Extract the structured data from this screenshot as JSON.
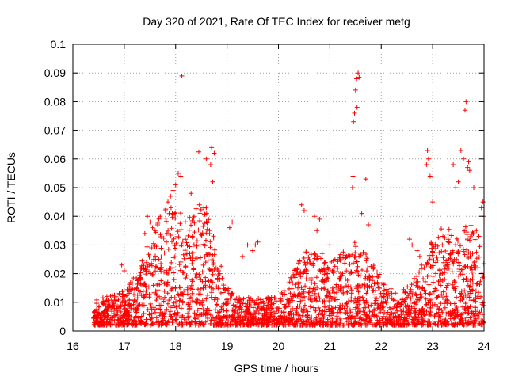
{
  "chart_data": {
    "type": "scatter",
    "title": "Day 320 of 2021, Rate Of TEC Index for receiver metg",
    "xlabel": "GPS time / hours",
    "ylabel": "ROTI / TECUs",
    "xlim": [
      16,
      24
    ],
    "ylim": [
      0,
      0.1
    ],
    "x_ticks": [
      "16",
      "17",
      "18",
      "19",
      "20",
      "21",
      "22",
      "23",
      "24"
    ],
    "y_ticks": [
      "0",
      "0.01",
      "0.02",
      "0.03",
      "0.04",
      "0.05",
      "0.06",
      "0.07",
      "0.08",
      "0.09",
      "0.1"
    ],
    "grid": true,
    "marker": "plus",
    "color": "#ff0000",
    "series": [
      {
        "x": [
          18.12,
          21.55,
          21.52,
          21.57,
          21.5,
          21.48,
          21.46,
          21.53,
          23.65,
          23.63,
          18.45,
          18.7,
          18.75,
          18.6,
          18.68,
          18.05,
          18.1,
          18.0,
          17.95,
          17.9,
          17.85,
          18.3,
          18.55,
          18.72,
          22.9,
          22.92,
          22.88,
          22.95,
          23.0,
          23.55,
          23.6,
          23.68,
          23.7,
          23.72,
          23.4,
          23.5,
          23.45,
          23.8,
          23.98,
          23.95,
          24.0,
          21.45,
          21.44,
          21.7,
          21.75,
          21.62,
          20.45,
          20.5,
          20.4,
          20.7,
          20.8,
          20.75,
          19.1,
          19.05,
          17.45,
          17.5,
          17.55,
          17.4,
          17.6,
          17.7,
          17.8,
          17.65,
          16.95,
          17.0,
          19.4,
          19.5,
          19.6,
          19.55,
          19.3,
          21.0,
          21.1,
          20.85,
          22.6,
          22.55,
          22.7,
          22.75,
          23.2,
          23.3,
          23.35,
          23.85,
          23.9
        ],
        "y": [
          0.089,
          0.09,
          0.088,
          0.0885,
          0.084,
          0.076,
          0.073,
          0.078,
          0.08,
          0.077,
          0.0625,
          0.064,
          0.062,
          0.06,
          0.058,
          0.055,
          0.054,
          0.051,
          0.049,
          0.047,
          0.045,
          0.048,
          0.046,
          0.052,
          0.063,
          0.06,
          0.058,
          0.054,
          0.045,
          0.063,
          0.06,
          0.057,
          0.059,
          0.056,
          0.058,
          0.052,
          0.05,
          0.05,
          0.045,
          0.043,
          0.04,
          0.054,
          0.05,
          0.053,
          0.037,
          0.041,
          0.044,
          0.042,
          0.038,
          0.04,
          0.039,
          0.035,
          0.038,
          0.036,
          0.04,
          0.038,
          0.036,
          0.034,
          0.035,
          0.04,
          0.042,
          0.037,
          0.023,
          0.021,
          0.03,
          0.028,
          0.031,
          0.03,
          0.026,
          0.03,
          0.025,
          0.027,
          0.03,
          0.032,
          0.028,
          0.026,
          0.033,
          0.031,
          0.027,
          0.035,
          0.033
        ]
      }
    ]
  }
}
